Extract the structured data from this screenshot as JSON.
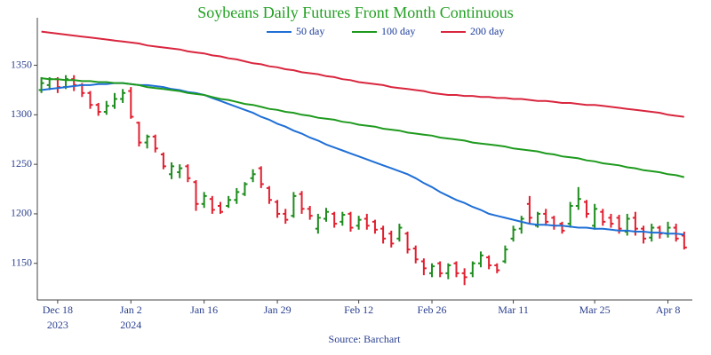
{
  "chart_data": {
    "type": "ohlc",
    "title": "Soybeans Daily Futures Front Month Continuous",
    "source": "Source: Barchart",
    "title_color": "#22a022",
    "up_color": "#1e8c1e",
    "down_color": "#e02030",
    "categories": [
      null,
      null,
      "Dec 18\n2023",
      null,
      null,
      null,
      null,
      null,
      null,
      null,
      null,
      "Jan 2\n2024",
      null,
      null,
      null,
      null,
      null,
      null,
      null,
      null,
      "Jan 16",
      null,
      null,
      null,
      null,
      null,
      null,
      null,
      null,
      "Jan 29",
      null,
      null,
      null,
      null,
      null,
      null,
      null,
      null,
      null,
      "Feb 12",
      null,
      null,
      null,
      null,
      null,
      null,
      null,
      null,
      "Feb 26",
      null,
      null,
      null,
      null,
      null,
      null,
      null,
      null,
      null,
      "Mar 11",
      null,
      null,
      null,
      null,
      null,
      null,
      null,
      null,
      null,
      "Mar 25",
      null,
      null,
      null,
      null,
      null,
      null,
      null,
      null,
      "Apr 8",
      null,
      null
    ],
    "open": [
      1325,
      1330,
      1336,
      1328,
      1336,
      1330,
      1322,
      1310,
      1303,
      1309,
      1316,
      1324,
      1292,
      1272,
      1278,
      1260,
      1240,
      1242,
      1248,
      1232,
      1210,
      1215,
      1208,
      1208,
      1214,
      1220,
      1236,
      1246,
      1226,
      1212,
      1200,
      1198,
      1220,
      1205,
      1185,
      1195,
      1200,
      1192,
      1200,
      1188,
      1195,
      1192,
      1185,
      1180,
      1175,
      1180,
      1165,
      1152,
      1140,
      1150,
      1140,
      1150,
      1140,
      1140,
      1150,
      1156,
      1148,
      1152,
      1175,
      1185,
      1210,
      1188,
      1200,
      1196,
      1190,
      1190,
      1208,
      1212,
      1188,
      1202,
      1196,
      1196,
      1182,
      1196,
      1185,
      1176,
      1186,
      1180,
      1186,
      1178
    ],
    "high": [
      1338,
      1338,
      1338,
      1340,
      1340,
      1332,
      1324,
      1312,
      1314,
      1322,
      1326,
      1328,
      1293,
      1280,
      1280,
      1262,
      1252,
      1250,
      1250,
      1234,
      1222,
      1218,
      1212,
      1218,
      1226,
      1232,
      1245,
      1248,
      1228,
      1214,
      1205,
      1222,
      1223,
      1208,
      1200,
      1206,
      1202,
      1202,
      1202,
      1198,
      1200,
      1194,
      1188,
      1183,
      1190,
      1182,
      1168,
      1155,
      1150,
      1152,
      1150,
      1152,
      1145,
      1152,
      1162,
      1158,
      1150,
      1168,
      1188,
      1198,
      1218,
      1202,
      1205,
      1198,
      1192,
      1212,
      1227,
      1214,
      1210,
      1205,
      1200,
      1199,
      1200,
      1202,
      1188,
      1190,
      1188,
      1192,
      1190,
      1182
    ],
    "low": [
      1322,
      1325,
      1322,
      1326,
      1324,
      1318,
      1306,
      1299,
      1300,
      1306,
      1312,
      1296,
      1268,
      1266,
      1262,
      1245,
      1235,
      1236,
      1232,
      1203,
      1206,
      1200,
      1200,
      1206,
      1210,
      1218,
      1232,
      1226,
      1210,
      1196,
      1190,
      1196,
      1200,
      1194,
      1180,
      1192,
      1186,
      1188,
      1182,
      1184,
      1184,
      1180,
      1170,
      1166,
      1172,
      1160,
      1150,
      1138,
      1136,
      1136,
      1134,
      1136,
      1128,
      1136,
      1146,
      1144,
      1140,
      1150,
      1172,
      1180,
      1190,
      1186,
      1188,
      1184,
      1180,
      1186,
      1204,
      1196,
      1184,
      1188,
      1186,
      1180,
      1178,
      1178,
      1170,
      1172,
      1175,
      1176,
      1172,
      1164
    ],
    "close": [
      1332,
      1336,
      1328,
      1336,
      1330,
      1322,
      1310,
      1303,
      1309,
      1316,
      1322,
      1298,
      1272,
      1278,
      1266,
      1248,
      1248,
      1246,
      1236,
      1210,
      1218,
      1204,
      1202,
      1214,
      1222,
      1230,
      1240,
      1230,
      1214,
      1200,
      1194,
      1218,
      1205,
      1198,
      1196,
      1202,
      1190,
      1199,
      1186,
      1194,
      1188,
      1184,
      1175,
      1170,
      1186,
      1164,
      1154,
      1145,
      1147,
      1140,
      1148,
      1140,
      1136,
      1150,
      1158,
      1148,
      1143,
      1164,
      1184,
      1195,
      1196,
      1200,
      1192,
      1188,
      1183,
      1208,
      1215,
      1200,
      1205,
      1192,
      1190,
      1185,
      1195,
      1185,
      1175,
      1186,
      1180,
      1186,
      1175,
      1166
    ],
    "series": [
      {
        "name": "50 day",
        "color": "#1f6fd6",
        "values": [
          1325,
          1326,
          1327,
          1328,
          1329,
          1330,
          1330,
          1331,
          1331,
          1332,
          1332,
          1331,
          1330,
          1330,
          1329,
          1328,
          1326,
          1325,
          1323,
          1322,
          1320,
          1317,
          1314,
          1311,
          1308,
          1305,
          1302,
          1298,
          1295,
          1291,
          1288,
          1284,
          1281,
          1277,
          1274,
          1270,
          1267,
          1264,
          1261,
          1258,
          1255,
          1252,
          1249,
          1246,
          1243,
          1240,
          1236,
          1231,
          1227,
          1222,
          1218,
          1214,
          1211,
          1207,
          1204,
          1200,
          1198,
          1196,
          1194,
          1192,
          1190,
          1189,
          1189,
          1188,
          1188,
          1187,
          1186,
          1186,
          1185,
          1185,
          1184,
          1183,
          1183,
          1182,
          1182,
          1181,
          1181,
          1180,
          1180,
          1179
        ]
      },
      {
        "name": "100 day",
        "color": "#1e9a1e",
        "values": [
          1337,
          1336,
          1336,
          1335,
          1335,
          1334,
          1334,
          1333,
          1333,
          1332,
          1332,
          1331,
          1330,
          1328,
          1327,
          1326,
          1325,
          1324,
          1322,
          1321,
          1320,
          1318,
          1316,
          1315,
          1313,
          1311,
          1310,
          1308,
          1306,
          1305,
          1303,
          1302,
          1300,
          1299,
          1297,
          1296,
          1295,
          1293,
          1292,
          1290,
          1289,
          1288,
          1286,
          1285,
          1284,
          1282,
          1281,
          1280,
          1279,
          1277,
          1276,
          1275,
          1274,
          1272,
          1271,
          1270,
          1269,
          1268,
          1266,
          1265,
          1264,
          1263,
          1261,
          1260,
          1258,
          1257,
          1256,
          1254,
          1253,
          1251,
          1250,
          1249,
          1247,
          1246,
          1244,
          1243,
          1242,
          1240,
          1239,
          1237
        ]
      },
      {
        "name": "200 day",
        "color": "#d9263e",
        "values": [
          1384,
          1383,
          1382,
          1381,
          1380,
          1379,
          1378,
          1377,
          1376,
          1375,
          1374,
          1373,
          1372,
          1370,
          1369,
          1368,
          1367,
          1366,
          1364,
          1363,
          1362,
          1360,
          1359,
          1357,
          1356,
          1354,
          1352,
          1351,
          1349,
          1348,
          1346,
          1345,
          1343,
          1342,
          1341,
          1339,
          1338,
          1336,
          1335,
          1333,
          1332,
          1331,
          1330,
          1328,
          1327,
          1326,
          1325,
          1324,
          1322,
          1321,
          1320,
          1320,
          1319,
          1319,
          1318,
          1318,
          1317,
          1317,
          1316,
          1316,
          1315,
          1314,
          1314,
          1313,
          1312,
          1312,
          1311,
          1310,
          1310,
          1309,
          1308,
          1307,
          1306,
          1305,
          1304,
          1303,
          1302,
          1300,
          1299,
          1298
        ]
      }
    ],
    "xlim": [
      -0.5,
      80
    ],
    "ylim": [
      1113,
      1398
    ],
    "yticks": [
      1150,
      1200,
      1250,
      1300,
      1350
    ]
  }
}
